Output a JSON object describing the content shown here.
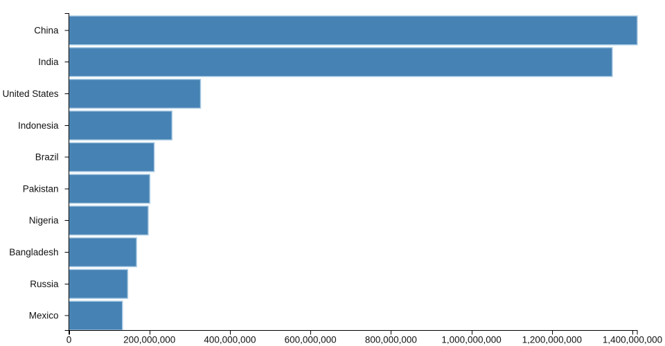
{
  "chart_data": {
    "type": "bar",
    "orientation": "horizontal",
    "title": "",
    "xlabel": "",
    "ylabel": "",
    "categories": [
      "China",
      "India",
      "United States",
      "Indonesia",
      "Brazil",
      "Pakistan",
      "Nigeria",
      "Bangladesh",
      "Russia",
      "Mexico"
    ],
    "values": [
      1412000000,
      1350000000,
      327000000,
      256000000,
      212000000,
      201000000,
      197000000,
      168000000,
      146000000,
      133000000
    ],
    "xlim": [
      0,
      1412000000
    ],
    "x_ticks": [
      0,
      200000000,
      400000000,
      600000000,
      800000000,
      1000000000,
      1200000000,
      1400000000
    ],
    "x_tick_labels": [
      "0",
      "200,000,000",
      "400,000,000",
      "600,000,000",
      "800,000,000",
      "1,000,000,000",
      "1,200,000,000",
      "1,400,000,000"
    ],
    "grid": false,
    "legend": false,
    "bar_color": "#4682b4",
    "bar_stroke": "#aecde4",
    "axis_color": "#000000",
    "text_color": "#111111",
    "background_color": "#ffffff"
  }
}
